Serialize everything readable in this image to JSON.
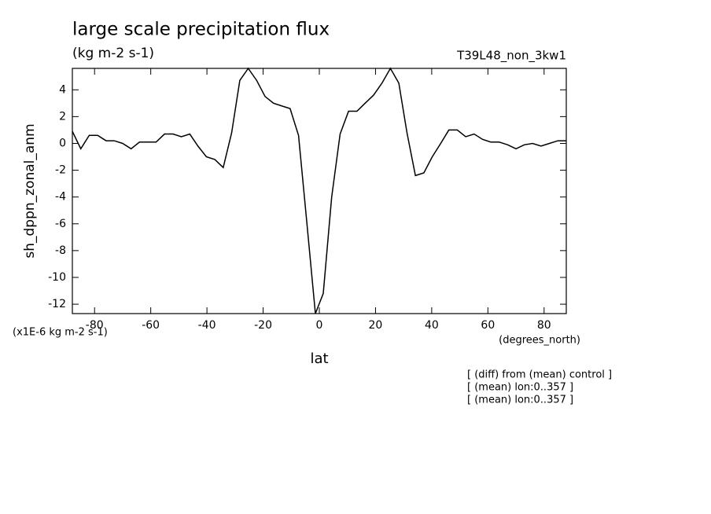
{
  "chart_data": {
    "type": "line",
    "title": "large scale precipitation flux",
    "subtitle": "(kg m-2 s-1)",
    "run_label": "T39L48_non_3kw1",
    "y_label": "sh_dppn_zonal_anm",
    "x_label": "lat",
    "y_units": "(x1E-6 kg m-2 s-1)",
    "x_units": "(degrees_north)",
    "notes": [
      "[ (diff) from (mean) control ]",
      "[ (mean) lon:0..357 ]",
      "[ (mean) lon:0..357 ]"
    ],
    "x": [
      -87.9,
      -84.9,
      -81.9,
      -78.9,
      -75.9,
      -73.0,
      -70.0,
      -67.0,
      -64.0,
      -61.0,
      -58.1,
      -55.1,
      -52.1,
      -49.1,
      -46.1,
      -43.2,
      -40.2,
      -37.2,
      -34.2,
      -31.2,
      -28.3,
      -25.3,
      -22.3,
      -19.3,
      -16.3,
      -13.4,
      -10.4,
      -7.4,
      -4.4,
      -1.4,
      1.4,
      4.4,
      7.4,
      10.4,
      13.4,
      16.3,
      19.3,
      22.3,
      25.3,
      28.3,
      31.2,
      34.2,
      37.2,
      40.2,
      43.2,
      46.1,
      49.1,
      52.1,
      55.1,
      58.1,
      61.0,
      64.0,
      67.0,
      70.0,
      73.0,
      75.9,
      78.9,
      81.9,
      84.9,
      87.9
    ],
    "values": [
      0.9,
      -0.4,
      0.6,
      0.6,
      0.2,
      0.2,
      0,
      -0.4,
      0.1,
      0.1,
      0.1,
      0.7,
      0.7,
      0.5,
      0.7,
      -0.2,
      -1,
      -1.2,
      -1.8,
      0.8,
      4.7,
      5.6,
      4.7,
      3.5,
      3,
      2.8,
      2.6,
      0.6,
      -6,
      -12.7,
      -11.2,
      -4,
      0.7,
      2.4,
      2.4,
      3,
      3.6,
      4.5,
      5.6,
      4.5,
      0.8,
      -2.4,
      -2.2,
      -1,
      0,
      1,
      1,
      0.5,
      0.7,
      0.3,
      0.1,
      0.1,
      -0.1,
      -0.4,
      -0.1,
      0,
      -0.2,
      0,
      0.2,
      0.2
    ],
    "color": "#000000",
    "xlim": [
      -87.9,
      87.9
    ],
    "xticks": [
      -80,
      -60,
      -40,
      -20,
      0,
      20,
      40,
      60,
      80
    ],
    "ylim": [
      -12.7,
      5.6
    ],
    "yticks": [
      -12,
      -10,
      -8,
      -6,
      -4,
      -2,
      0,
      2,
      4
    ]
  }
}
